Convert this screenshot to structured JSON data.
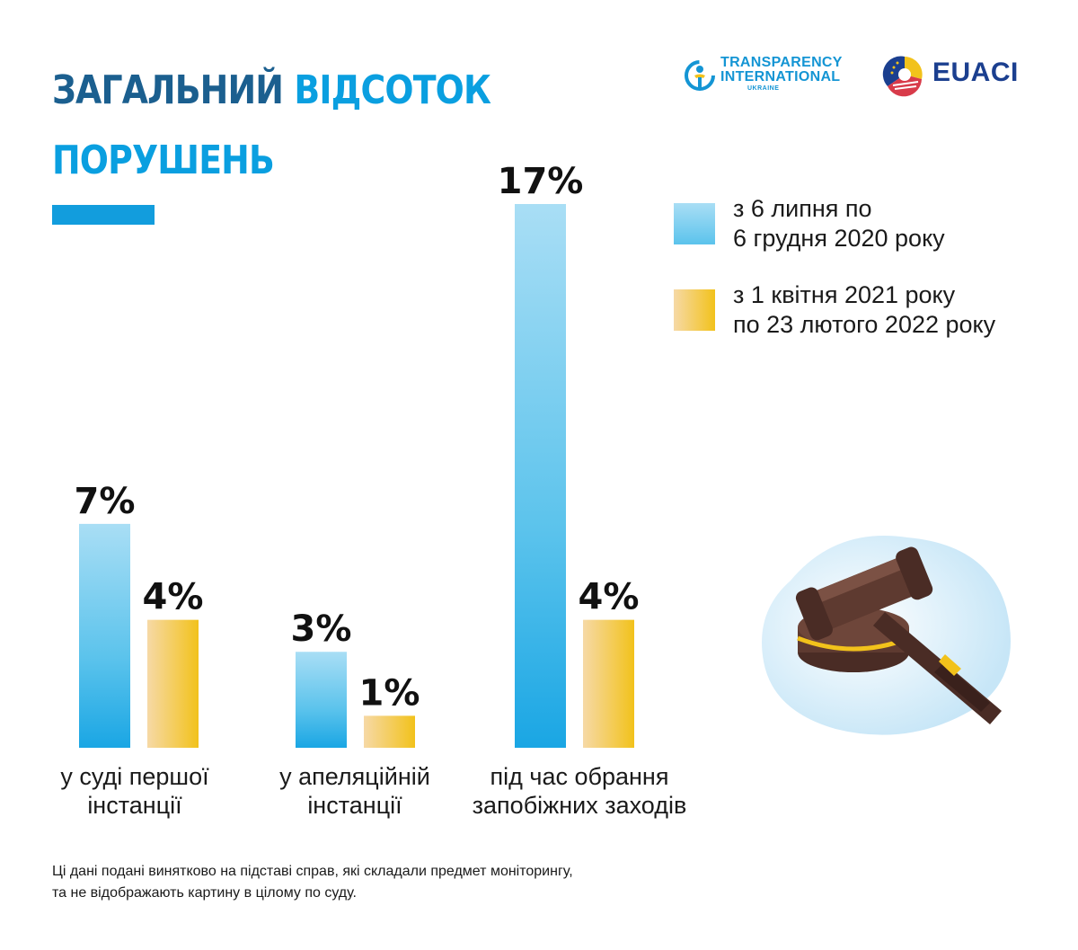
{
  "header": {
    "title_part1": "ЗАГАЛЬНИЙ",
    "title_part2": "ВІДСОТОК",
    "title_line2": "ПОРУШЕНЬ"
  },
  "logos": {
    "ti": {
      "line1": "TRANSPARENCY",
      "line2": "INTERNATIONAL",
      "line3": "UKRAINE"
    },
    "euaci": {
      "text": "EUACI"
    }
  },
  "colors": {
    "title_dark": "#1b5f8f",
    "title_accent": "#0a9fe0",
    "blue_series": "#5bc3ec",
    "yellow_series": "#f2c21b",
    "text": "#1a1a1a"
  },
  "chart_data": {
    "type": "bar",
    "categories": [
      "у суді першої інстанції",
      "у апеляційній інстанції",
      "під час обрання запобіжних заходів"
    ],
    "category_lines": [
      [
        "у суді першої",
        "інстанції"
      ],
      [
        "у апеляційній",
        "інстанції"
      ],
      [
        "під час обрання",
        "запобіжних заходів"
      ]
    ],
    "unit": "%",
    "series": [
      {
        "name": "з 6 липня по 6 грудня 2020 року",
        "legend_lines": [
          "з 6 липня по",
          "6 грудня 2020 року"
        ],
        "color": "#5bc3ec",
        "values": [
          7,
          3,
          17
        ],
        "labels": [
          "7%",
          "3%",
          "17%"
        ]
      },
      {
        "name": "з 1 квітня 2021 року по 23 лютого 2022 року",
        "legend_lines": [
          "з 1 квітня 2021 року",
          "по 23 лютого 2022 року"
        ],
        "color": "#f2c21b",
        "values": [
          4,
          1,
          4
        ],
        "labels": [
          "4%",
          "1%",
          "4%"
        ]
      }
    ],
    "ylim": [
      0,
      17
    ],
    "grid": false,
    "legend_position": "top-right",
    "xlabel": "",
    "ylabel": ""
  },
  "footnote": {
    "line1": "Ці дані подані винятково на підставі справ, які складали предмет моніторингу,",
    "line2": "та не відображають картину в цілому по суду."
  },
  "illustration": {
    "icon": "gavel-icon"
  }
}
